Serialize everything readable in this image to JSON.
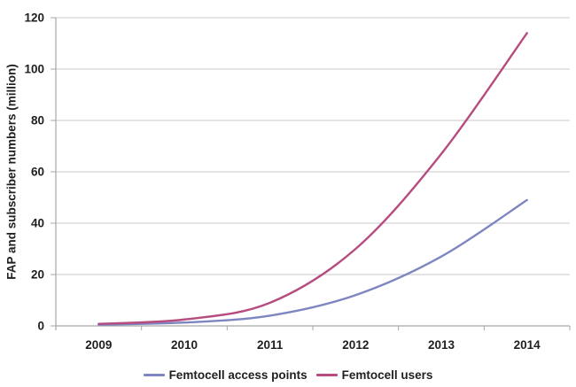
{
  "chart_data": {
    "type": "line",
    "title": "",
    "xlabel": "",
    "ylabel": "FAP and subscriber numbers (million)",
    "categories": [
      "2009",
      "2010",
      "2011",
      "2012",
      "2013",
      "2014"
    ],
    "series": [
      {
        "name": "Femtocell access points",
        "color": "#7E86C1",
        "values": [
          0.5,
          1.3,
          4,
          12,
          27,
          49
        ]
      },
      {
        "name": "Femtocell users",
        "color": "#B64C7F",
        "values": [
          0.8,
          2.5,
          9,
          30,
          67,
          114
        ]
      }
    ],
    "ylim": [
      0,
      120
    ],
    "yticks": [
      0,
      20,
      40,
      60,
      80,
      100,
      120
    ],
    "grid": "horizontal",
    "legend_position": "bottom-center",
    "line_style": "smooth",
    "axis_color": "#A6A6A6",
    "gridline_color": "#C8C8C8",
    "text_color": "#1F1F1F"
  }
}
